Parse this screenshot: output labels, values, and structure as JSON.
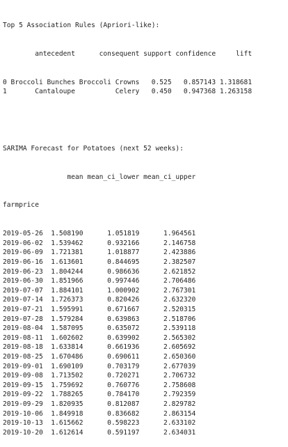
{
  "association": {
    "title": "Top 5 Association Rules (Apriori-like):",
    "headers": [
      "antecedent",
      "consequent",
      "support",
      "confidence",
      "lift"
    ],
    "rows": [
      {
        "index": "0",
        "antecedent": "Broccoli Bunches",
        "consequent": "Broccoli Crowns",
        "support": "0.525",
        "confidence": "0.857143",
        "lift": "1.318681"
      },
      {
        "index": "1",
        "antecedent": "Cantaloupe",
        "consequent": "Celery",
        "support": "0.450",
        "confidence": "0.947368",
        "lift": "1.263158"
      }
    ]
  },
  "forecast": {
    "title": "SARIMA Forecast for Potatoes (next 52 weeks):",
    "headers": [
      "mean",
      "mean_ci_lower",
      "mean_ci_upper"
    ],
    "index_name": "farmprice",
    "rows": [
      {
        "date": "2019-05-26",
        "mean": "1.508190",
        "lower": "1.051819",
        "upper": "1.964561"
      },
      {
        "date": "2019-06-02",
        "mean": "1.539462",
        "lower": "0.932166",
        "upper": "2.146758"
      },
      {
        "date": "2019-06-09",
        "mean": "1.721381",
        "lower": "1.018877",
        "upper": "2.423886"
      },
      {
        "date": "2019-06-16",
        "mean": "1.613601",
        "lower": "0.844695",
        "upper": "2.382507"
      },
      {
        "date": "2019-06-23",
        "mean": "1.804244",
        "lower": "0.986636",
        "upper": "2.621852"
      },
      {
        "date": "2019-06-30",
        "mean": "1.851966",
        "lower": "0.997446",
        "upper": "2.706486"
      },
      {
        "date": "2019-07-07",
        "mean": "1.884101",
        "lower": "1.000902",
        "upper": "2.767301"
      },
      {
        "date": "2019-07-14",
        "mean": "1.726373",
        "lower": "0.820426",
        "upper": "2.632320"
      },
      {
        "date": "2019-07-21",
        "mean": "1.595991",
        "lower": "0.671667",
        "upper": "2.520315"
      },
      {
        "date": "2019-07-28",
        "mean": "1.579284",
        "lower": "0.639863",
        "upper": "2.518706"
      },
      {
        "date": "2019-08-04",
        "mean": "1.587095",
        "lower": "0.635072",
        "upper": "2.539118"
      },
      {
        "date": "2019-08-11",
        "mean": "1.602602",
        "lower": "0.639902",
        "upper": "2.565302"
      },
      {
        "date": "2019-08-18",
        "mean": "1.633814",
        "lower": "0.661936",
        "upper": "2.605692"
      },
      {
        "date": "2019-08-25",
        "mean": "1.670486",
        "lower": "0.690611",
        "upper": "2.650360"
      },
      {
        "date": "2019-09-01",
        "mean": "1.690109",
        "lower": "0.703179",
        "upper": "2.677039"
      },
      {
        "date": "2019-09-08",
        "mean": "1.713502",
        "lower": "0.720271",
        "upper": "2.706732"
      },
      {
        "date": "2019-09-15",
        "mean": "1.759692",
        "lower": "0.760776",
        "upper": "2.758608"
      },
      {
        "date": "2019-09-22",
        "mean": "1.788265",
        "lower": "0.784170",
        "upper": "2.792359"
      },
      {
        "date": "2019-09-29",
        "mean": "1.820935",
        "lower": "0.812087",
        "upper": "2.829782"
      },
      {
        "date": "2019-10-06",
        "mean": "1.849918",
        "lower": "0.836682",
        "upper": "2.863154"
      },
      {
        "date": "2019-10-13",
        "mean": "1.615662",
        "lower": "0.598223",
        "upper": "2.633102"
      },
      {
        "date": "2019-10-20",
        "mean": "1.612614",
        "lower": "0.591197",
        "upper": "2.634031"
      }
    ]
  }
}
